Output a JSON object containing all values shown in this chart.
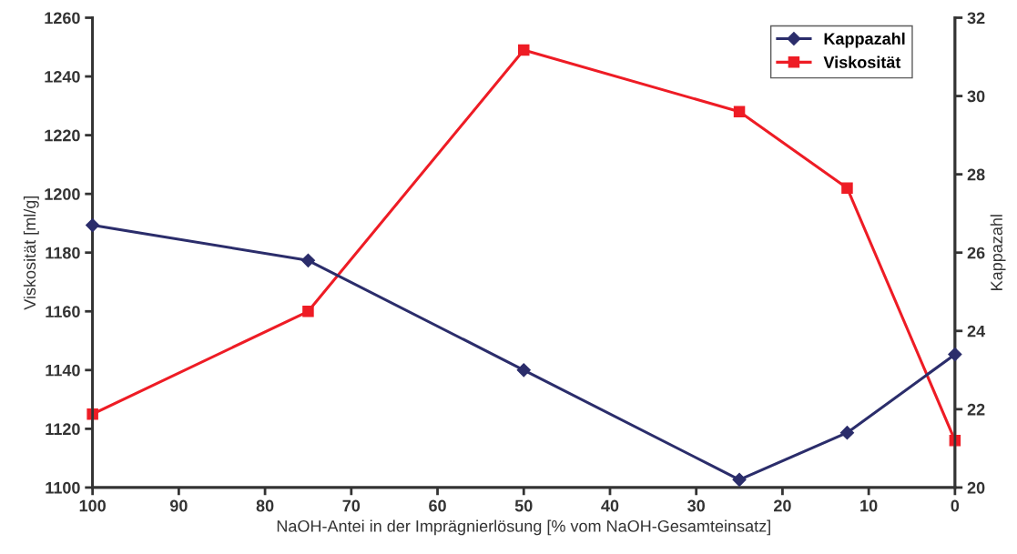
{
  "chart_data": {
    "type": "line",
    "xlabel": "NaOH-Antei in der Imprägnierlösung [% vom NaOH-Gesamteinsatz]",
    "ylabel": "Viskosität [ml/g]",
    "y2label": "Kappazahl",
    "x": [
      100,
      75,
      50,
      25,
      12.5,
      0
    ],
    "xlim": [
      100,
      0
    ],
    "xticks": [
      100,
      90,
      80,
      70,
      60,
      50,
      40,
      30,
      20,
      10,
      0
    ],
    "ylim": [
      1100,
      1260
    ],
    "yticks": [
      1100,
      1120,
      1140,
      1160,
      1180,
      1200,
      1220,
      1240,
      1260
    ],
    "y2lim": [
      20,
      32
    ],
    "y2ticks": [
      20,
      22,
      24,
      26,
      28,
      30,
      32
    ],
    "grid": false,
    "legend": "top right",
    "series": [
      {
        "name": "Kappazahl",
        "color": "#2b2d6b",
        "axis": "y2",
        "marker": "diamond",
        "values": [
          26.7,
          25.8,
          23.0,
          20.2,
          21.4,
          23.4
        ]
      },
      {
        "name": "Viskosität",
        "color": "#ee1c25",
        "marker": "square",
        "values": [
          1125,
          1160,
          1249,
          1228,
          1202,
          1116
        ]
      }
    ]
  }
}
